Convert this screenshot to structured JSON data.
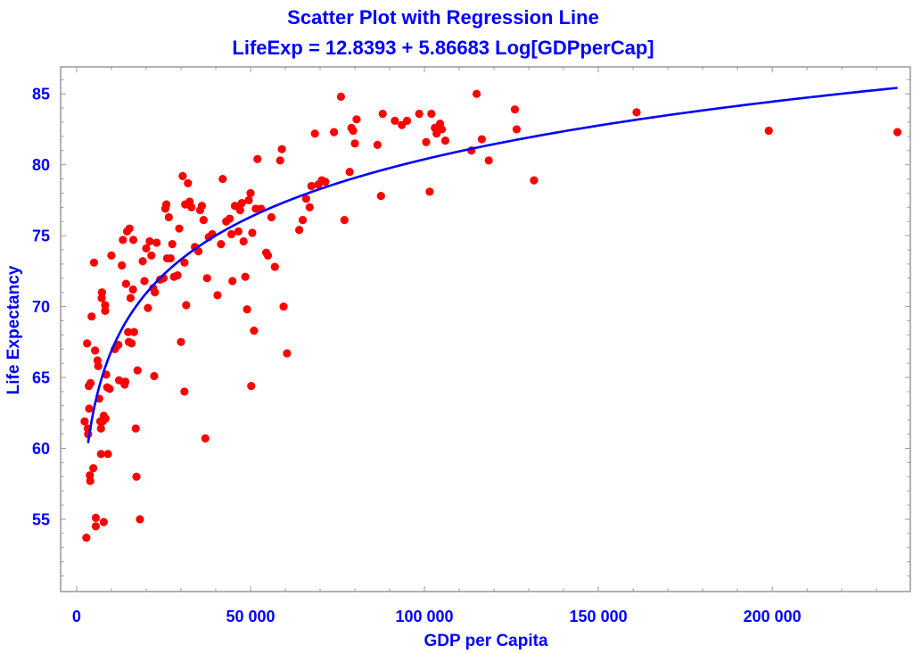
{
  "chart_data": {
    "type": "scatter",
    "title": "Scatter Plot with Regression Line",
    "subtitle": "LifeExp = 12.8393 + 5.86683 Log[GDPperCap]",
    "xlabel": "GDP per Capita",
    "ylabel": "Life Expectancy",
    "xlim": [
      -4600,
      239700
    ],
    "ylim": [
      49.9,
      86.9
    ],
    "xticks": [
      0,
      50000,
      100000,
      150000,
      200000
    ],
    "xtick_labels": [
      "0",
      "50 000",
      "100 000",
      "150 000",
      "200 000"
    ],
    "yticks": [
      55,
      60,
      65,
      70,
      75,
      80,
      85
    ],
    "ytick_labels": [
      "55",
      "60",
      "65",
      "70",
      "75",
      "80",
      "85"
    ],
    "grid": false,
    "colors": {
      "points": "#ff0000",
      "line": "#0000ff",
      "text": "#0000ff",
      "frame": "#999999"
    },
    "regression": {
      "intercept": 12.8393,
      "slope": 5.86683,
      "x_start": 3300,
      "x_end": 236000
    },
    "series": [
      {
        "name": "countries",
        "points": [
          [
            2300,
            61.9
          ],
          [
            2800,
            53.7
          ],
          [
            3000,
            67.4
          ],
          [
            3200,
            61.4
          ],
          [
            3300,
            61.0
          ],
          [
            3500,
            64.4
          ],
          [
            3600,
            62.8
          ],
          [
            3800,
            58.1
          ],
          [
            3900,
            57.7
          ],
          [
            4000,
            64.6
          ],
          [
            4300,
            69.3
          ],
          [
            4800,
            58.6
          ],
          [
            5000,
            73.1
          ],
          [
            5300,
            66.9
          ],
          [
            5500,
            55.1
          ],
          [
            5500,
            54.5
          ],
          [
            6000,
            66.2
          ],
          [
            6200,
            65.8
          ],
          [
            6500,
            63.5
          ],
          [
            6800,
            61.9
          ],
          [
            7000,
            61.4
          ],
          [
            7000,
            59.6
          ],
          [
            7200,
            70.6
          ],
          [
            7300,
            71.0
          ],
          [
            7500,
            61.9
          ],
          [
            7800,
            62.3
          ],
          [
            7800,
            54.8
          ],
          [
            8200,
            70.1
          ],
          [
            8200,
            69.7
          ],
          [
            8300,
            62.1
          ],
          [
            8500,
            65.2
          ],
          [
            8800,
            64.3
          ],
          [
            9000,
            59.6
          ],
          [
            9500,
            64.2
          ],
          [
            10000,
            73.6
          ],
          [
            11000,
            67.0
          ],
          [
            12000,
            67.3
          ],
          [
            12200,
            64.8
          ],
          [
            13000,
            72.9
          ],
          [
            13300,
            74.7
          ],
          [
            13800,
            64.5
          ],
          [
            14000,
            64.7
          ],
          [
            14200,
            71.6
          ],
          [
            14500,
            75.3
          ],
          [
            14800,
            68.2
          ],
          [
            15000,
            67.5
          ],
          [
            15200,
            75.5
          ],
          [
            15500,
            70.6
          ],
          [
            15800,
            67.4
          ],
          [
            16200,
            71.2
          ],
          [
            16300,
            74.7
          ],
          [
            16500,
            68.2
          ],
          [
            17000,
            61.4
          ],
          [
            17200,
            58.0
          ],
          [
            17500,
            65.5
          ],
          [
            18200,
            55.0
          ],
          [
            19000,
            73.2
          ],
          [
            19500,
            71.8
          ],
          [
            20000,
            74.1
          ],
          [
            20500,
            69.9
          ],
          [
            21000,
            74.6
          ],
          [
            21500,
            73.6
          ],
          [
            22000,
            71.3
          ],
          [
            22300,
            65.1
          ],
          [
            22500,
            71.0
          ],
          [
            23000,
            74.5
          ],
          [
            24000,
            71.9
          ],
          [
            25000,
            72.0
          ],
          [
            25500,
            76.9
          ],
          [
            25800,
            77.2
          ],
          [
            26000,
            73.4
          ],
          [
            26500,
            76.3
          ],
          [
            27000,
            73.4
          ],
          [
            27500,
            74.4
          ],
          [
            28000,
            72.1
          ],
          [
            29000,
            72.2
          ],
          [
            29500,
            75.5
          ],
          [
            30000,
            67.5
          ],
          [
            30500,
            79.2
          ],
          [
            31000,
            64.0
          ],
          [
            31000,
            73.1
          ],
          [
            31200,
            77.2
          ],
          [
            31500,
            70.1
          ],
          [
            32000,
            78.7
          ],
          [
            32500,
            77.4
          ],
          [
            33000,
            77.0
          ],
          [
            34000,
            74.2
          ],
          [
            35000,
            73.9
          ],
          [
            35500,
            76.8
          ],
          [
            36000,
            77.1
          ],
          [
            36500,
            76.1
          ],
          [
            37000,
            60.7
          ],
          [
            37500,
            72.0
          ],
          [
            38000,
            74.9
          ],
          [
            39000,
            75.1
          ],
          [
            40500,
            70.8
          ],
          [
            41500,
            74.4
          ],
          [
            42000,
            79.0
          ],
          [
            43000,
            76.0
          ],
          [
            44000,
            76.2
          ],
          [
            44500,
            75.1
          ],
          [
            44800,
            71.8
          ],
          [
            45500,
            77.1
          ],
          [
            46500,
            75.3
          ],
          [
            47000,
            76.8
          ],
          [
            47500,
            77.3
          ],
          [
            48000,
            74.6
          ],
          [
            48500,
            72.1
          ],
          [
            49000,
            69.8
          ],
          [
            49500,
            77.5
          ],
          [
            50000,
            78.0
          ],
          [
            50200,
            64.4
          ],
          [
            50500,
            75.2
          ],
          [
            51000,
            68.3
          ],
          [
            51500,
            76.9
          ],
          [
            52000,
            80.4
          ],
          [
            53000,
            76.9
          ],
          [
            54500,
            73.8
          ],
          [
            55000,
            73.6
          ],
          [
            56000,
            76.3
          ],
          [
            57000,
            72.8
          ],
          [
            58500,
            80.3
          ],
          [
            59000,
            81.1
          ],
          [
            59500,
            70.0
          ],
          [
            60500,
            66.7
          ],
          [
            64000,
            75.4
          ],
          [
            65000,
            76.1
          ],
          [
            66000,
            77.6
          ],
          [
            67000,
            77.0
          ],
          [
            67500,
            78.5
          ],
          [
            68500,
            82.2
          ],
          [
            69500,
            78.6
          ],
          [
            70500,
            78.9
          ],
          [
            71500,
            78.8
          ],
          [
            74000,
            82.3
          ],
          [
            76000,
            84.8
          ],
          [
            77000,
            76.1
          ],
          [
            78500,
            79.5
          ],
          [
            79000,
            82.6
          ],
          [
            79500,
            82.4
          ],
          [
            80000,
            81.5
          ],
          [
            80500,
            83.2
          ],
          [
            86500,
            81.4
          ],
          [
            87500,
            77.8
          ],
          [
            88000,
            83.6
          ],
          [
            91500,
            83.1
          ],
          [
            93500,
            82.8
          ],
          [
            95000,
            83.1
          ],
          [
            98500,
            83.6
          ],
          [
            100500,
            81.6
          ],
          [
            101500,
            78.1
          ],
          [
            102000,
            83.6
          ],
          [
            103000,
            82.6
          ],
          [
            103500,
            82.2
          ],
          [
            104500,
            82.9
          ],
          [
            105000,
            82.5
          ],
          [
            106000,
            81.7
          ],
          [
            113500,
            81.0
          ],
          [
            115000,
            85.0
          ],
          [
            116500,
            81.8
          ],
          [
            118500,
            80.3
          ],
          [
            126000,
            83.9
          ],
          [
            126500,
            82.5
          ],
          [
            131500,
            78.9
          ],
          [
            161000,
            83.7
          ],
          [
            199000,
            82.4
          ],
          [
            236000,
            82.3
          ]
        ]
      }
    ]
  }
}
